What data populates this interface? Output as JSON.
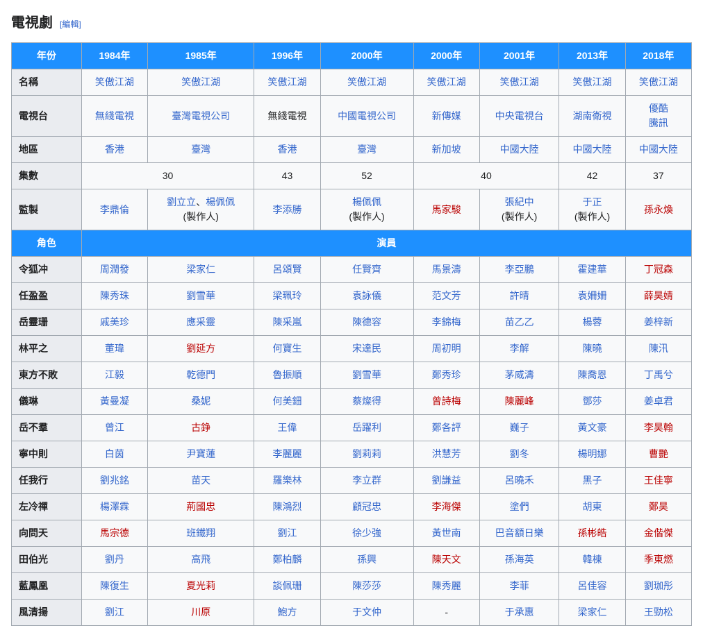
{
  "section": {
    "title": "電視劇",
    "edit_label": "[編輯]"
  },
  "years_header": "年份",
  "years": [
    "1984年",
    "1985年",
    "1996年",
    "2000年",
    "2000年",
    "2001年",
    "2013年",
    "2018年"
  ],
  "meta_rows": [
    {
      "label": "名稱",
      "cells": [
        {
          "text": "笑傲江湖",
          "style": "blue"
        },
        {
          "text": "笑傲江湖",
          "style": "blue"
        },
        {
          "text": "笑傲江湖",
          "style": "blue"
        },
        {
          "text": "笑傲江湖",
          "style": "blue"
        },
        {
          "text": "笑傲江湖",
          "style": "blue"
        },
        {
          "text": "笑傲江湖",
          "style": "blue"
        },
        {
          "text": "笑傲江湖",
          "style": "blue"
        },
        {
          "text": "笑傲江湖",
          "style": "blue"
        }
      ]
    },
    {
      "label": "電視台",
      "cells": [
        {
          "text": "無綫電視",
          "style": "blue"
        },
        {
          "text": "臺灣電視公司",
          "style": "blue"
        },
        {
          "text": "無綫電視",
          "style": "plain"
        },
        {
          "text": "中國電視公司",
          "style": "blue"
        },
        {
          "text": "新傳媒",
          "style": "blue"
        },
        {
          "text": "中央電視台",
          "style": "blue"
        },
        {
          "text": "湖南衛視",
          "style": "blue"
        },
        {
          "html": "<span class=\"link-blue\">優酷</span><br><span class=\"link-blue\">騰訊</span>"
        }
      ]
    },
    {
      "label": "地區",
      "cells": [
        {
          "text": "香港",
          "style": "blue"
        },
        {
          "text": "臺灣",
          "style": "blue"
        },
        {
          "text": "香港",
          "style": "blue"
        },
        {
          "text": "臺灣",
          "style": "blue"
        },
        {
          "text": "新加坡",
          "style": "blue"
        },
        {
          "text": "中國大陸",
          "style": "blue"
        },
        {
          "text": "中國大陸",
          "style": "blue"
        },
        {
          "text": "中國大陸",
          "style": "blue"
        }
      ]
    },
    {
      "label": "集數",
      "cells": [
        {
          "text": "30",
          "style": "plain",
          "colspan": 2
        },
        {
          "text": "43",
          "style": "plain"
        },
        {
          "text": "52",
          "style": "plain"
        },
        {
          "text": "40",
          "style": "plain",
          "colspan": 2
        },
        {
          "text": "42",
          "style": "plain"
        },
        {
          "text": "37",
          "style": "plain"
        }
      ]
    },
    {
      "label": "監製",
      "cells": [
        {
          "text": "李鼎倫",
          "style": "blue"
        },
        {
          "html": "<span class=\"link-blue\">劉立立</span><span class=\"plain-text\">、</span><span class=\"link-blue\">楊佩佩</span><br><span class=\"plain-text\">(製作人)</span>"
        },
        {
          "text": "李添勝",
          "style": "blue"
        },
        {
          "html": "<span class=\"link-blue\">楊佩佩</span><br><span class=\"plain-text\">(製作人)</span>"
        },
        {
          "text": "馬家駿",
          "style": "red"
        },
        {
          "html": "<span class=\"link-blue\">張紀中</span><br><span class=\"plain-text\">(製作人)</span>"
        },
        {
          "html": "<span class=\"link-blue\">于正</span><br><span class=\"plain-text\">(製作人)</span>"
        },
        {
          "text": "孫永煥",
          "style": "red"
        }
      ]
    }
  ],
  "actor_header": {
    "left": "角色",
    "right": "演員"
  },
  "roles": [
    {
      "label": "令狐冲",
      "cells": [
        {
          "text": "周潤發",
          "style": "blue"
        },
        {
          "text": "梁家仁",
          "style": "blue"
        },
        {
          "text": "呂頌賢",
          "style": "blue"
        },
        {
          "text": "任賢齊",
          "style": "blue"
        },
        {
          "text": "馬景濤",
          "style": "blue"
        },
        {
          "text": "李亞鵬",
          "style": "blue"
        },
        {
          "text": "霍建華",
          "style": "blue"
        },
        {
          "text": "丁冠森",
          "style": "red"
        }
      ]
    },
    {
      "label": "任盈盈",
      "cells": [
        {
          "text": "陳秀珠",
          "style": "blue"
        },
        {
          "text": "劉雪華",
          "style": "blue"
        },
        {
          "text": "梁珮玲",
          "style": "blue"
        },
        {
          "text": "袁詠儀",
          "style": "blue"
        },
        {
          "text": "范文芳",
          "style": "blue"
        },
        {
          "text": "許晴",
          "style": "blue"
        },
        {
          "text": "袁姍姍",
          "style": "blue"
        },
        {
          "text": "薛昊婧",
          "style": "red"
        }
      ]
    },
    {
      "label": "岳靈珊",
      "cells": [
        {
          "text": "戚美珍",
          "style": "blue"
        },
        {
          "text": "應采靈",
          "style": "blue"
        },
        {
          "text": "陳采嵐",
          "style": "blue"
        },
        {
          "text": "陳德容",
          "style": "blue"
        },
        {
          "text": "李錦梅",
          "style": "blue"
        },
        {
          "text": "苗乙乙",
          "style": "blue"
        },
        {
          "text": "楊蓉",
          "style": "blue"
        },
        {
          "text": "姜梓新",
          "style": "blue"
        }
      ]
    },
    {
      "label": "林平之",
      "cells": [
        {
          "text": "董瑋",
          "style": "blue"
        },
        {
          "text": "劉延方",
          "style": "red"
        },
        {
          "text": "何寶生",
          "style": "blue"
        },
        {
          "text": "宋達民",
          "style": "blue"
        },
        {
          "text": "周初明",
          "style": "blue"
        },
        {
          "text": "李解",
          "style": "blue"
        },
        {
          "text": "陳曉",
          "style": "blue"
        },
        {
          "text": "陳汛",
          "style": "blue"
        }
      ]
    },
    {
      "label": "東方不敗",
      "cells": [
        {
          "text": "江毅",
          "style": "blue"
        },
        {
          "text": "乾德門",
          "style": "blue"
        },
        {
          "text": "魯振順",
          "style": "blue"
        },
        {
          "text": "劉雪華",
          "style": "blue"
        },
        {
          "text": "鄭秀珍",
          "style": "blue"
        },
        {
          "text": "茅威濤",
          "style": "blue"
        },
        {
          "text": "陳喬恩",
          "style": "blue"
        },
        {
          "text": "丁禹兮",
          "style": "blue"
        }
      ]
    },
    {
      "label": "儀琳",
      "cells": [
        {
          "text": "黃曼凝",
          "style": "blue"
        },
        {
          "text": "桑妮",
          "style": "blue"
        },
        {
          "text": "何美鈿",
          "style": "blue"
        },
        {
          "text": "蔡燦得",
          "style": "blue"
        },
        {
          "text": "曾詩梅",
          "style": "red"
        },
        {
          "text": "陳麗峰",
          "style": "red"
        },
        {
          "text": "鄧莎",
          "style": "blue"
        },
        {
          "text": "姜卓君",
          "style": "blue"
        }
      ]
    },
    {
      "label": "岳不羣",
      "cells": [
        {
          "text": "曾江",
          "style": "blue"
        },
        {
          "text": "古錚",
          "style": "red"
        },
        {
          "text": "王偉",
          "style": "blue"
        },
        {
          "text": "岳躍利",
          "style": "blue"
        },
        {
          "text": "鄭各評",
          "style": "blue"
        },
        {
          "text": "巍子",
          "style": "blue"
        },
        {
          "text": "黃文豪",
          "style": "blue"
        },
        {
          "text": "李昊翰",
          "style": "red"
        }
      ]
    },
    {
      "label": "寧中則",
      "cells": [
        {
          "text": "白茵",
          "style": "blue"
        },
        {
          "text": "尹寶蓮",
          "style": "blue"
        },
        {
          "text": "李麗麗",
          "style": "blue"
        },
        {
          "text": "劉莉莉",
          "style": "blue"
        },
        {
          "text": "洪慧芳",
          "style": "blue"
        },
        {
          "text": "劉冬",
          "style": "blue"
        },
        {
          "text": "楊明娜",
          "style": "blue"
        },
        {
          "text": "曹艷",
          "style": "red"
        }
      ]
    },
    {
      "label": "任我行",
      "cells": [
        {
          "text": "劉兆銘",
          "style": "blue"
        },
        {
          "text": "苗天",
          "style": "blue"
        },
        {
          "text": "羅樂林",
          "style": "blue"
        },
        {
          "text": "李立群",
          "style": "blue"
        },
        {
          "text": "劉謙益",
          "style": "blue"
        },
        {
          "text": "呂曉禾",
          "style": "blue"
        },
        {
          "text": "黑子",
          "style": "blue"
        },
        {
          "text": "王佳寧",
          "style": "red"
        }
      ]
    },
    {
      "label": "左冷禪",
      "cells": [
        {
          "text": "楊澤霖",
          "style": "blue"
        },
        {
          "text": "荊國忠",
          "style": "red"
        },
        {
          "text": "陳鴻烈",
          "style": "blue"
        },
        {
          "text": "顧冠忠",
          "style": "blue"
        },
        {
          "text": "李海傑",
          "style": "red"
        },
        {
          "text": "塗們",
          "style": "blue"
        },
        {
          "text": "胡東",
          "style": "blue"
        },
        {
          "text": "鄭昊",
          "style": "red"
        }
      ]
    },
    {
      "label": "向問天",
      "cells": [
        {
          "text": "馬宗德",
          "style": "red"
        },
        {
          "text": "班鐵翔",
          "style": "blue"
        },
        {
          "text": "劉江",
          "style": "blue"
        },
        {
          "text": "徐少強",
          "style": "blue"
        },
        {
          "text": "黃世南",
          "style": "blue"
        },
        {
          "text": "巴音額日樂",
          "style": "blue"
        },
        {
          "text": "孫彬皓",
          "style": "red"
        },
        {
          "text": "金偕傑",
          "style": "red"
        }
      ]
    },
    {
      "label": "田伯光",
      "cells": [
        {
          "text": "劉丹",
          "style": "blue"
        },
        {
          "text": "高飛",
          "style": "blue"
        },
        {
          "text": "鄭柏麟",
          "style": "blue"
        },
        {
          "text": "孫興",
          "style": "blue"
        },
        {
          "text": "陳天文",
          "style": "red"
        },
        {
          "text": "孫海英",
          "style": "blue"
        },
        {
          "text": "韓棟",
          "style": "blue"
        },
        {
          "text": "季東燃",
          "style": "red"
        }
      ]
    },
    {
      "label": "藍鳳凰",
      "cells": [
        {
          "text": "陳復生",
          "style": "blue"
        },
        {
          "text": "夏光莉",
          "style": "red"
        },
        {
          "text": "談佩珊",
          "style": "blue"
        },
        {
          "text": "陳莎莎",
          "style": "blue"
        },
        {
          "text": "陳秀麗",
          "style": "blue"
        },
        {
          "text": "李菲",
          "style": "blue"
        },
        {
          "text": "呂佳容",
          "style": "blue"
        },
        {
          "text": "劉珈彤",
          "style": "blue"
        }
      ]
    },
    {
      "label": "風清揚",
      "cells": [
        {
          "text": "劉江",
          "style": "blue"
        },
        {
          "text": "川原",
          "style": "red"
        },
        {
          "text": "鮑方",
          "style": "blue"
        },
        {
          "text": "于文仲",
          "style": "blue"
        },
        {
          "text": "-",
          "style": "plain"
        },
        {
          "text": "于承惠",
          "style": "blue"
        },
        {
          "text": "梁家仁",
          "style": "blue"
        },
        {
          "text": "王勁松",
          "style": "blue"
        }
      ]
    }
  ],
  "colors": {
    "header_blue": "#1e90ff",
    "link_blue": "#3366cc",
    "link_red": "#ba0000",
    "row_header_bg": "#eaecf0",
    "border": "#a2a9b1",
    "cell_bg": "#f8f9fa"
  }
}
